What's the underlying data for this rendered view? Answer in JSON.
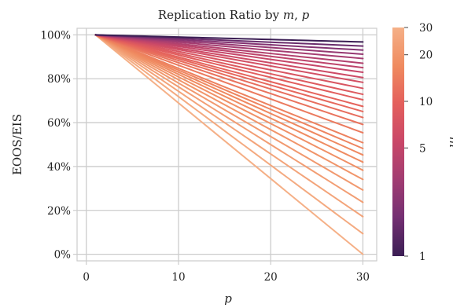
{
  "chart_data": {
    "type": "line",
    "title": "Replication Ratio by m, p",
    "title_text": "Replication Ratio by ",
    "title_m": "m",
    "title_sep": ", ",
    "title_p": "p",
    "xlabel": "p",
    "ylabel": "EOOS/EIS",
    "xlim": [
      -1,
      31.5
    ],
    "ylim": [
      -0.03,
      1.03
    ],
    "x_ticks": [
      0,
      10,
      20,
      30
    ],
    "x_tick_labels": [
      "0",
      "10",
      "20",
      "30"
    ],
    "y_ticks": [
      0,
      0.2,
      0.4,
      0.6,
      0.8,
      1.0
    ],
    "y_tick_labels": [
      "0%",
      "20%",
      "40%",
      "60%",
      "80%",
      "100%"
    ],
    "grid": true,
    "background": "#ffffff",
    "p_range": [
      1,
      30
    ],
    "formula": "y = 1 - (p - 1) / (m * 30 - 1)",
    "series_m": [
      1,
      1.1,
      1.2,
      1.3,
      1.4,
      1.5,
      1.6,
      1.7,
      1.8,
      1.9,
      2,
      2.2,
      2.4,
      2.6,
      2.8,
      3,
      3.3,
      3.6,
      4,
      4.5,
      5,
      5.7,
      6.5,
      7.5,
      9,
      11,
      14,
      19,
      30
    ],
    "colorbar": {
      "label": "m",
      "scale": "log",
      "range": [
        1,
        30
      ],
      "ticks": [
        1,
        5,
        10,
        20,
        30
      ],
      "tick_labels": [
        "1",
        "5",
        "10",
        "20",
        "30"
      ],
      "colormap": "flare_r",
      "colors": [
        "#3b1e54",
        "#742f72",
        "#a03c72",
        "#c94768",
        "#e4605c",
        "#ef8a5f",
        "#f5b087"
      ]
    }
  }
}
